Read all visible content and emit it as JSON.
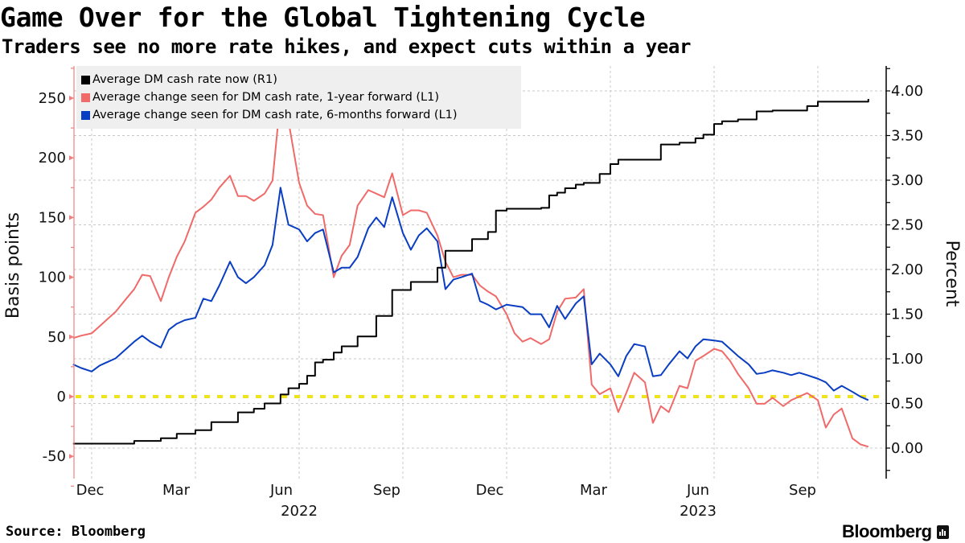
{
  "header": {
    "title": "Game Over for the Global Tightening Cycle",
    "subtitle": "Traders see no more rate hikes, and expect cuts within a year"
  },
  "footer": {
    "source": "Source: Bloomberg",
    "logo": "Bloomberg"
  },
  "chart_data": {
    "type": "line",
    "title": "Game Over for the Global Tightening Cycle",
    "subtitle": "Traders see no more rate hikes, and expect cuts within a year",
    "left_axis": {
      "label": "Basis points",
      "ticks": [
        "250",
        "200",
        "150",
        "100",
        "50",
        "0",
        "-50"
      ],
      "tick_values": [
        250,
        200,
        150,
        100,
        50,
        0,
        -50
      ],
      "range": [
        -69,
        277
      ]
    },
    "right_axis": {
      "label": "Percent",
      "ticks": [
        "4.00",
        "3.50",
        "3.00",
        "2.50",
        "2.00",
        "1.50",
        "1.00",
        "0.50",
        "0.00"
      ],
      "tick_values": [
        4,
        3.5,
        3,
        2.5,
        2,
        1.5,
        1,
        0.5,
        0
      ],
      "range": [
        -0.34,
        4.28
      ]
    },
    "x_axis": {
      "tick_labels": [
        "Dec",
        "Mar",
        "Jun",
        "Sep",
        "Dec",
        "Mar",
        "Jun",
        "Sep"
      ],
      "year_labels": [
        "2022",
        "2023"
      ],
      "range": [
        "2021-12-15",
        "2023-11-15"
      ]
    },
    "grid": true,
    "legend_position": "top-left",
    "reference_line": {
      "axis": "left",
      "value": 0,
      "color": "#f2e21b",
      "style": "dotted"
    },
    "colors": {
      "cash_rate": "#000000",
      "one_year": "#f06a6a",
      "six_month": "#0a3ec2",
      "axis_left": "#f08080"
    },
    "dates": [
      "2021-12-15",
      "2021-12-22",
      "2022-01-01",
      "2022-01-08",
      "2022-01-15",
      "2022-01-22",
      "2022-02-01",
      "2022-02-08",
      "2022-02-15",
      "2022-02-22",
      "2022-03-01",
      "2022-03-08",
      "2022-03-15",
      "2022-03-22",
      "2022-04-01",
      "2022-04-08",
      "2022-04-15",
      "2022-04-22",
      "2022-05-01",
      "2022-05-08",
      "2022-05-15",
      "2022-05-22",
      "2022-06-01",
      "2022-06-08",
      "2022-06-15",
      "2022-06-22",
      "2022-07-01",
      "2022-07-08",
      "2022-07-15",
      "2022-07-22",
      "2022-08-01",
      "2022-08-08",
      "2022-08-15",
      "2022-08-22",
      "2022-09-01",
      "2022-09-08",
      "2022-09-15",
      "2022-09-22",
      "2022-10-01",
      "2022-10-08",
      "2022-10-15",
      "2022-10-22",
      "2022-11-01",
      "2022-11-08",
      "2022-11-15",
      "2022-11-22",
      "2022-12-01",
      "2022-12-08",
      "2022-12-15",
      "2022-12-22",
      "2023-01-01",
      "2023-01-08",
      "2023-01-15",
      "2023-01-22",
      "2023-02-01",
      "2023-02-08",
      "2023-02-15",
      "2023-02-22",
      "2023-03-01",
      "2023-03-08",
      "2023-03-15",
      "2023-03-22",
      "2023-04-01",
      "2023-04-08",
      "2023-04-15",
      "2023-04-22",
      "2023-05-01",
      "2023-05-08",
      "2023-05-15",
      "2023-05-22",
      "2023-06-01",
      "2023-06-08",
      "2023-06-15",
      "2023-06-22",
      "2023-07-01",
      "2023-07-08",
      "2023-07-15",
      "2023-07-22",
      "2023-08-01",
      "2023-08-08",
      "2023-08-15",
      "2023-08-22",
      "2023-09-01",
      "2023-09-08",
      "2023-09-15",
      "2023-09-22",
      "2023-10-01",
      "2023-10-08",
      "2023-10-15",
      "2023-10-22",
      "2023-11-01",
      "2023-11-08",
      "2023-11-15"
    ],
    "series": [
      {
        "name": "Average DM cash rate now (R1)",
        "axis": "right",
        "unit": "percent",
        "shape": "step",
        "values": [
          0.05,
          0.05,
          0.05,
          0.05,
          0.05,
          0.05,
          0.05,
          0.08,
          0.08,
          0.08,
          0.11,
          0.11,
          0.16,
          0.16,
          0.2,
          0.2,
          0.29,
          0.29,
          0.29,
          0.4,
          0.4,
          0.44,
          0.5,
          0.5,
          0.6,
          0.67,
          0.72,
          0.81,
          0.96,
          0.99,
          1.07,
          1.14,
          1.14,
          1.25,
          1.25,
          1.48,
          1.48,
          1.77,
          1.77,
          1.86,
          1.86,
          1.86,
          2.02,
          2.21,
          2.21,
          2.21,
          2.34,
          2.34,
          2.42,
          2.66,
          2.68,
          2.68,
          2.68,
          2.68,
          2.69,
          2.83,
          2.86,
          2.91,
          2.95,
          2.97,
          2.97,
          3.07,
          3.18,
          3.23,
          3.23,
          3.23,
          3.23,
          3.23,
          3.4,
          3.4,
          3.42,
          3.42,
          3.47,
          3.51,
          3.63,
          3.66,
          3.66,
          3.68,
          3.68,
          3.77,
          3.77,
          3.78,
          3.78,
          3.78,
          3.78,
          3.83,
          3.88,
          3.88,
          3.88,
          3.88,
          3.88,
          3.88,
          3.91
        ]
      },
      {
        "name": "Average change seen for DM cash rate, 1-year forward (L1)",
        "axis": "left",
        "unit": "basis points",
        "values": [
          49,
          51,
          53,
          59,
          65,
          71,
          82,
          90,
          102,
          101,
          80,
          100,
          117,
          130,
          154,
          159,
          165,
          175,
          185,
          168,
          168,
          164,
          170,
          181,
          250,
          231,
          179,
          160,
          153,
          152,
          100,
          118,
          127,
          160,
          173,
          170,
          167,
          187,
          152,
          156,
          156,
          154,
          135,
          113,
          100,
          102,
          102,
          93,
          88,
          84,
          69,
          53,
          46,
          49,
          44,
          48,
          71,
          82,
          83,
          90,
          10,
          2,
          7,
          -13,
          3,
          20,
          12,
          -22,
          -8,
          -13,
          9,
          7,
          30,
          34,
          40,
          38,
          30,
          19,
          7,
          -6,
          -6,
          -1,
          -8,
          -3,
          0,
          3,
          -3,
          -26,
          -15,
          -10,
          -35,
          -40,
          -42
        ]
      },
      {
        "name": "Average change seen for DM cash rate, 6-months forward (L1)",
        "axis": "left",
        "unit": "basis points",
        "values": [
          27,
          24,
          21,
          26,
          29,
          32,
          40,
          46,
          51,
          46,
          41,
          56,
          61,
          64,
          66,
          82,
          80,
          93,
          113,
          100,
          95,
          100,
          110,
          127,
          175,
          144,
          140,
          130,
          137,
          140,
          104,
          108,
          108,
          117,
          141,
          150,
          142,
          167,
          137,
          123,
          135,
          141,
          130,
          90,
          98,
          100,
          103,
          80,
          77,
          73,
          77,
          76,
          75,
          69,
          69,
          58,
          76,
          65,
          78,
          84,
          27,
          36,
          27,
          17,
          34,
          44,
          42,
          17,
          18,
          27,
          38,
          32,
          42,
          48,
          47,
          46,
          40,
          34,
          27,
          19,
          20,
          22,
          20,
          18,
          20,
          18,
          15,
          12,
          5,
          9,
          4,
          0,
          -3
        ]
      }
    ]
  }
}
